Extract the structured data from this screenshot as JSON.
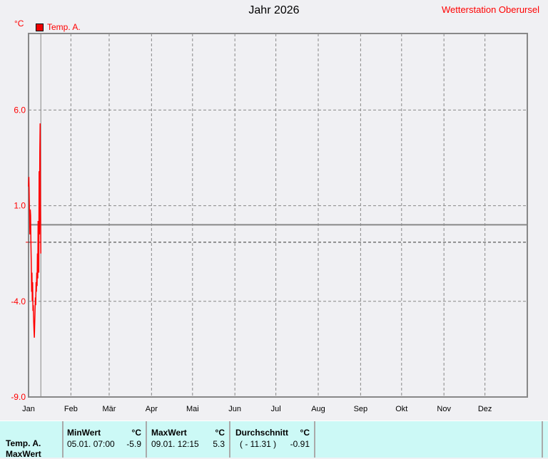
{
  "header": {
    "title": "Jahr 2026",
    "station": "Wetterstation Oberursel",
    "unit": "°C"
  },
  "chart_data": {
    "type": "line",
    "title": "Jahr 2026",
    "ylabel": "°C",
    "ylim": [
      -9,
      10
    ],
    "yticks": [
      "6.0",
      "1.0",
      "-4.0",
      "-9.0"
    ],
    "ytick_values": [
      6,
      1,
      -4,
      -9
    ],
    "xticks": [
      "Jan",
      "Feb",
      "Mär",
      "Apr",
      "Mai",
      "Jun",
      "Jul",
      "Aug",
      "Sep",
      "Okt",
      "Nov",
      "Dez"
    ],
    "xlim_days": [
      0,
      365
    ],
    "grid": true,
    "current_day_marker": 9,
    "average_line": -0.91,
    "zero_line": 0,
    "legend": "top-left",
    "series": [
      {
        "name": "Temp. A.",
        "color": "#ff0000",
        "x_days": [
          0.0,
          0.25,
          0.5,
          0.75,
          1.0,
          1.25,
          1.5,
          1.75,
          2.0,
          2.25,
          2.5,
          2.75,
          3.0,
          3.25,
          3.5,
          3.75,
          4.0,
          4.25,
          4.5,
          4.75,
          5.0,
          5.25,
          5.5,
          5.75,
          6.0,
          6.25,
          6.5,
          6.75,
          7.0,
          7.25,
          7.5,
          7.75,
          8.0,
          8.25,
          8.5,
          8.75,
          9.0
        ],
        "values": [
          2.0,
          2.5,
          1.5,
          0.5,
          -0.5,
          0.8,
          0.5,
          -1.0,
          -2.0,
          -3.5,
          -2.5,
          -4.0,
          -3.0,
          -4.5,
          -4.2,
          -5.0,
          -5.5,
          -5.9,
          -5.2,
          -4.5,
          -3.8,
          -4.2,
          -3.0,
          -3.5,
          -2.5,
          -3.2,
          -1.5,
          -2.8,
          0.2,
          -1.5,
          -2.5,
          2.8,
          -0.5,
          3.8,
          5.3,
          1.0,
          -1.5
        ]
      }
    ]
  },
  "stats": {
    "row_label": "Temp. A.",
    "row_label2": "MaxWert",
    "min": {
      "label": "MinWert",
      "unit": "°C",
      "date": "05.01.  07:00",
      "value": "-5.9"
    },
    "max": {
      "label": "MaxWert",
      "unit": "°C",
      "date": "09.01.  12:15",
      "value": "5.3"
    },
    "avg": {
      "label": "Durchschnitt",
      "unit": "°C",
      "extra": "( - 11.31 )",
      "value": "-0.91"
    }
  }
}
